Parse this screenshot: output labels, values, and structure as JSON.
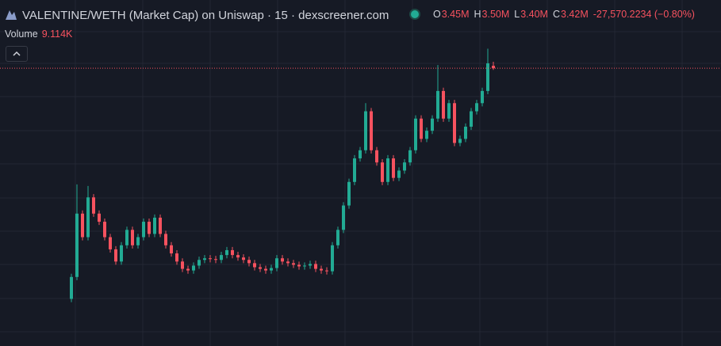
{
  "header": {
    "title": "VALENTINE/WETH (Market Cap) on Uniswap · 15 · dexscreener.com",
    "ohlc": [
      {
        "label": "O",
        "value": "3.45M"
      },
      {
        "label": "H",
        "value": "3.50M"
      },
      {
        "label": "L",
        "value": "3.40M"
      },
      {
        "label": "C",
        "value": "3.42M"
      }
    ],
    "change": "-27,570.2234 (−0.80%)",
    "volume_label": "Volume",
    "volume_value": "9.114K"
  },
  "chart_data": {
    "type": "candlestick",
    "open": [
      0.58,
      0.85,
      1.63,
      1.34,
      1.83,
      1.63,
      1.53,
      1.34,
      1.19,
      1.04,
      1.24,
      1.43,
      1.24,
      1.34,
      1.53,
      1.38,
      1.58,
      1.38,
      1.24,
      1.14,
      1.04,
      0.95,
      0.93,
      0.99,
      1.06,
      1.08,
      1.07,
      1.06,
      1.12,
      1.18,
      1.12,
      1.09,
      1.06,
      1.02,
      0.97,
      0.95,
      0.93,
      0.96,
      1.08,
      1.04,
      1.02,
      1.0,
      0.98,
      0.99,
      1.01,
      0.95,
      0.93,
      0.92,
      1.24,
      1.43,
      1.73,
      2.02,
      2.31,
      2.41,
      2.89,
      2.41,
      2.26,
      2.02,
      2.31,
      2.07,
      2.16,
      2.26,
      2.41,
      2.8,
      2.55,
      2.65,
      2.8,
      3.14,
      2.8,
      2.99,
      2.5,
      2.55,
      2.7,
      2.89,
      2.99,
      3.14,
      3.45
    ],
    "high": [
      0.89,
      1.99,
      1.67,
      1.97,
      1.87,
      1.67,
      1.57,
      1.38,
      1.23,
      1.28,
      1.47,
      1.47,
      1.38,
      1.57,
      1.57,
      1.62,
      1.62,
      1.42,
      1.28,
      1.18,
      1.08,
      0.99,
      1.03,
      1.1,
      1.12,
      1.12,
      1.11,
      1.16,
      1.22,
      1.22,
      1.16,
      1.13,
      1.1,
      1.06,
      1.01,
      0.99,
      1.0,
      1.12,
      1.12,
      1.08,
      1.06,
      1.04,
      1.03,
      1.05,
      1.05,
      0.99,
      0.97,
      1.28,
      1.47,
      1.77,
      2.06,
      2.35,
      2.45,
      2.99,
      2.93,
      2.45,
      2.3,
      2.35,
      2.35,
      2.2,
      2.3,
      2.45,
      2.84,
      2.84,
      2.69,
      2.84,
      3.46,
      3.18,
      3.03,
      3.03,
      2.59,
      2.74,
      2.93,
      3.03,
      3.18,
      3.66,
      3.5
    ],
    "low": [
      0.54,
      0.81,
      1.3,
      1.3,
      1.59,
      1.49,
      1.3,
      1.15,
      1.0,
      1.0,
      1.2,
      1.2,
      1.2,
      1.3,
      1.34,
      1.34,
      1.34,
      1.2,
      1.1,
      1.0,
      0.91,
      0.89,
      0.89,
      0.95,
      1.02,
      1.03,
      1.02,
      1.02,
      1.08,
      1.08,
      1.05,
      1.02,
      0.98,
      0.93,
      0.91,
      0.89,
      0.89,
      0.92,
      1.0,
      0.98,
      0.96,
      0.94,
      0.94,
      0.95,
      0.91,
      0.89,
      0.88,
      0.88,
      1.2,
      1.39,
      1.69,
      1.98,
      2.27,
      2.37,
      2.37,
      2.22,
      1.98,
      1.98,
      2.03,
      2.03,
      2.12,
      2.22,
      2.37,
      2.51,
      2.51,
      2.61,
      2.76,
      2.76,
      2.76,
      2.46,
      2.46,
      2.51,
      2.66,
      2.85,
      2.95,
      3.1,
      3.4
    ],
    "close": [
      0.85,
      1.63,
      1.34,
      1.83,
      1.63,
      1.53,
      1.34,
      1.19,
      1.04,
      1.24,
      1.43,
      1.24,
      1.34,
      1.53,
      1.38,
      1.58,
      1.38,
      1.24,
      1.14,
      1.04,
      0.95,
      0.93,
      0.99,
      1.06,
      1.08,
      1.07,
      1.06,
      1.12,
      1.18,
      1.12,
      1.09,
      1.06,
      1.02,
      0.97,
      0.95,
      0.93,
      0.96,
      1.08,
      1.04,
      1.02,
      1.0,
      0.98,
      0.99,
      1.01,
      0.95,
      0.93,
      0.92,
      1.24,
      1.43,
      1.73,
      2.02,
      2.31,
      2.41,
      2.89,
      2.41,
      2.26,
      2.02,
      2.31,
      2.07,
      2.16,
      2.26,
      2.41,
      2.8,
      2.55,
      2.65,
      2.8,
      3.14,
      2.8,
      2.99,
      2.5,
      2.55,
      2.7,
      2.89,
      2.99,
      3.14,
      3.48,
      3.42
    ],
    "ylim": [
      0,
      4.26
    ],
    "up_color": "#22ab94",
    "down_color": "#f7525f",
    "price_line": true
  }
}
